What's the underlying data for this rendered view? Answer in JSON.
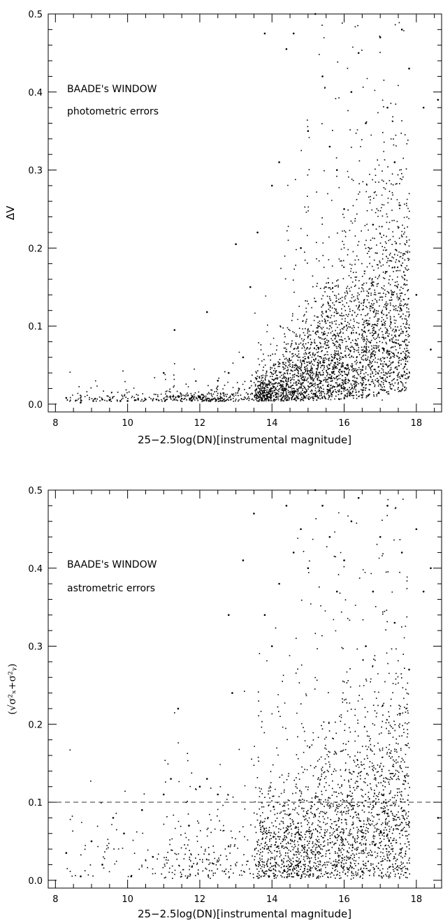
{
  "chart_data": [
    {
      "type": "scatter",
      "title": "",
      "xlabel": "25−2.5log(DN)[instrumental magnitude]",
      "ylabel": "ΔV",
      "xlim": [
        7.8,
        18.7
      ],
      "ylim": [
        -0.01,
        0.5
      ],
      "xticks": [
        "8",
        "10",
        "12",
        "14",
        "16",
        "18"
      ],
      "yticks": [
        "0.0",
        "0.1",
        "0.2",
        "0.3",
        "0.4",
        "0.5"
      ],
      "annotations": [
        "BAADE's WINDOW",
        "photometric errors"
      ],
      "grid": false,
      "legend": "none",
      "point_color": "#000000",
      "series": [
        {
          "x": [
            8.3,
            8.7,
            9.1,
            9.3,
            9.5,
            9.8,
            10.0,
            10.2,
            10.5,
            10.8,
            11.0,
            11.3,
            11.5,
            11.8,
            12.0,
            12.2,
            12.5,
            12.8,
            13.0,
            13.2,
            13.4,
            13.6,
            13.8,
            14.0,
            14.2,
            14.4,
            14.6,
            14.8,
            15.0,
            15.2,
            15.4,
            15.6,
            15.8,
            16.0,
            16.2,
            16.4,
            16.6,
            16.8,
            17.0,
            17.2,
            17.4,
            17.6,
            17.8,
            18.0,
            18.2,
            18.4,
            18.6
          ],
          "y": [
            0.008,
            0.002,
            0.007,
            0.006,
            0.005,
            0.004,
            0.004,
            0.005,
            0.006,
            0.006,
            0.04,
            0.095,
            0.007,
            0.01,
            0.01,
            0.118,
            0.03,
            0.04,
            0.205,
            0.06,
            0.15,
            0.22,
            0.475,
            0.28,
            0.31,
            0.455,
            0.475,
            0.2,
            0.35,
            0.5,
            0.42,
            0.33,
            0.3,
            0.25,
            0.4,
            0.45,
            0.36,
            0.23,
            0.47,
            0.38,
            0.31,
            0.48,
            0.43,
            0.14,
            0.38,
            0.07,
            0.39
          ]
        }
      ]
    },
    {
      "type": "scatter",
      "title": "",
      "xlabel": "25−2.5log(DN)[instrumental magnitude]",
      "ylabel": "(√σ²ₓ+σ²ᵧ)",
      "xlim": [
        7.8,
        18.7
      ],
      "ylim": [
        -0.01,
        0.5
      ],
      "xticks": [
        "8",
        "10",
        "12",
        "14",
        "16",
        "18"
      ],
      "yticks": [
        "0.0",
        "0.1",
        "0.2",
        "0.3",
        "0.4",
        "0.5"
      ],
      "annotations": [
        "BAADE's WINDOW",
        "astrometric errors"
      ],
      "reference_line": {
        "y": 0.1,
        "style": "dashed"
      },
      "grid": false,
      "legend": "none",
      "point_color": "#000000",
      "series": [
        {
          "x": [
            8.3,
            8.7,
            9.0,
            9.3,
            9.6,
            9.9,
            10.1,
            10.4,
            10.7,
            11.0,
            11.2,
            11.4,
            11.7,
            12.0,
            12.2,
            12.5,
            12.8,
            12.9,
            13.2,
            13.5,
            13.8,
            14.0,
            14.2,
            14.4,
            14.6,
            14.8,
            15.0,
            15.2,
            15.4,
            15.6,
            15.8,
            16.0,
            16.2,
            16.4,
            16.6,
            16.8,
            17.0,
            17.2,
            17.4,
            17.6,
            17.8,
            18.0,
            18.2,
            18.4,
            18.6
          ],
          "y": [
            0.035,
            0.005,
            0.05,
            0.02,
            0.08,
            0.06,
            0.005,
            0.09,
            0.03,
            0.11,
            0.13,
            0.22,
            0.07,
            0.12,
            0.13,
            0.11,
            0.34,
            0.24,
            0.41,
            0.47,
            0.34,
            0.3,
            0.38,
            0.48,
            0.42,
            0.45,
            0.4,
            0.5,
            0.48,
            0.44,
            0.37,
            0.41,
            0.46,
            0.49,
            0.3,
            0.37,
            0.44,
            0.48,
            0.33,
            0.42,
            0.27,
            0.45,
            0.37,
            0.4,
            0.08
          ]
        }
      ]
    }
  ]
}
